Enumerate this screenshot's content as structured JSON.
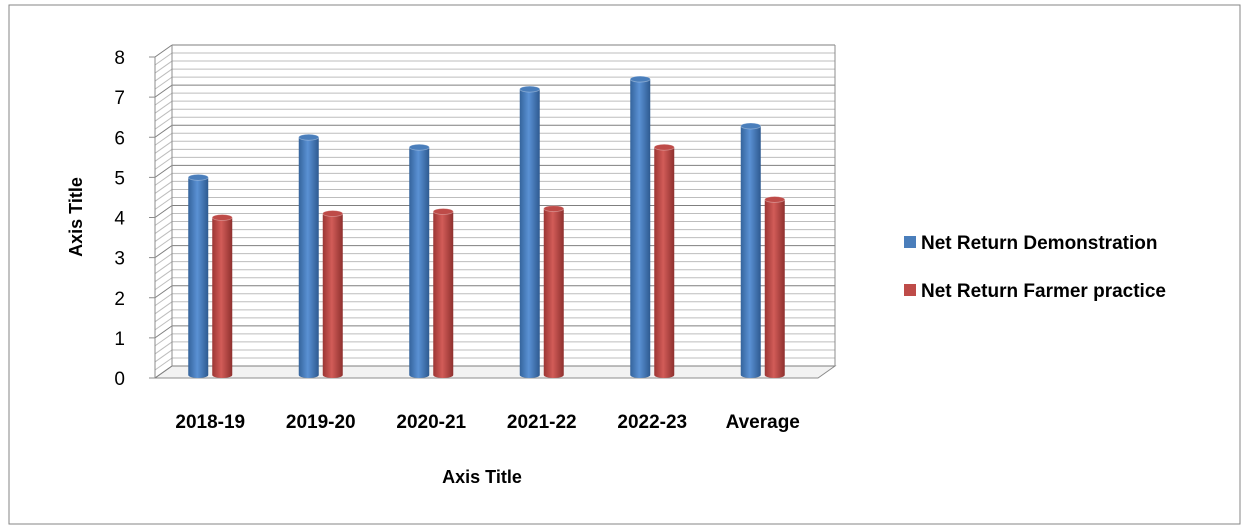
{
  "chart_data": {
    "type": "bar",
    "categories": [
      "2018-19",
      "2019-20",
      "2020-21",
      "2021-22",
      "2022-23",
      "Average"
    ],
    "series": [
      {
        "name": "Net Return Demonstration",
        "values": [
          5.0,
          6.0,
          5.75,
          7.2,
          7.45,
          6.28
        ],
        "color": "#4A7EBB"
      },
      {
        "name": "Net Return Farmer practice",
        "values": [
          4.0,
          4.1,
          4.15,
          4.22,
          5.75,
          4.45
        ],
        "color": "#BE4B48"
      }
    ],
    "xlabel": "Axis Title",
    "ylabel": "Axis Title",
    "ylim": [
      0,
      8
    ],
    "yticks": [
      0,
      1,
      2,
      3,
      4,
      5,
      6,
      7,
      8
    ],
    "minor_gridlines": true,
    "legend": "right"
  }
}
